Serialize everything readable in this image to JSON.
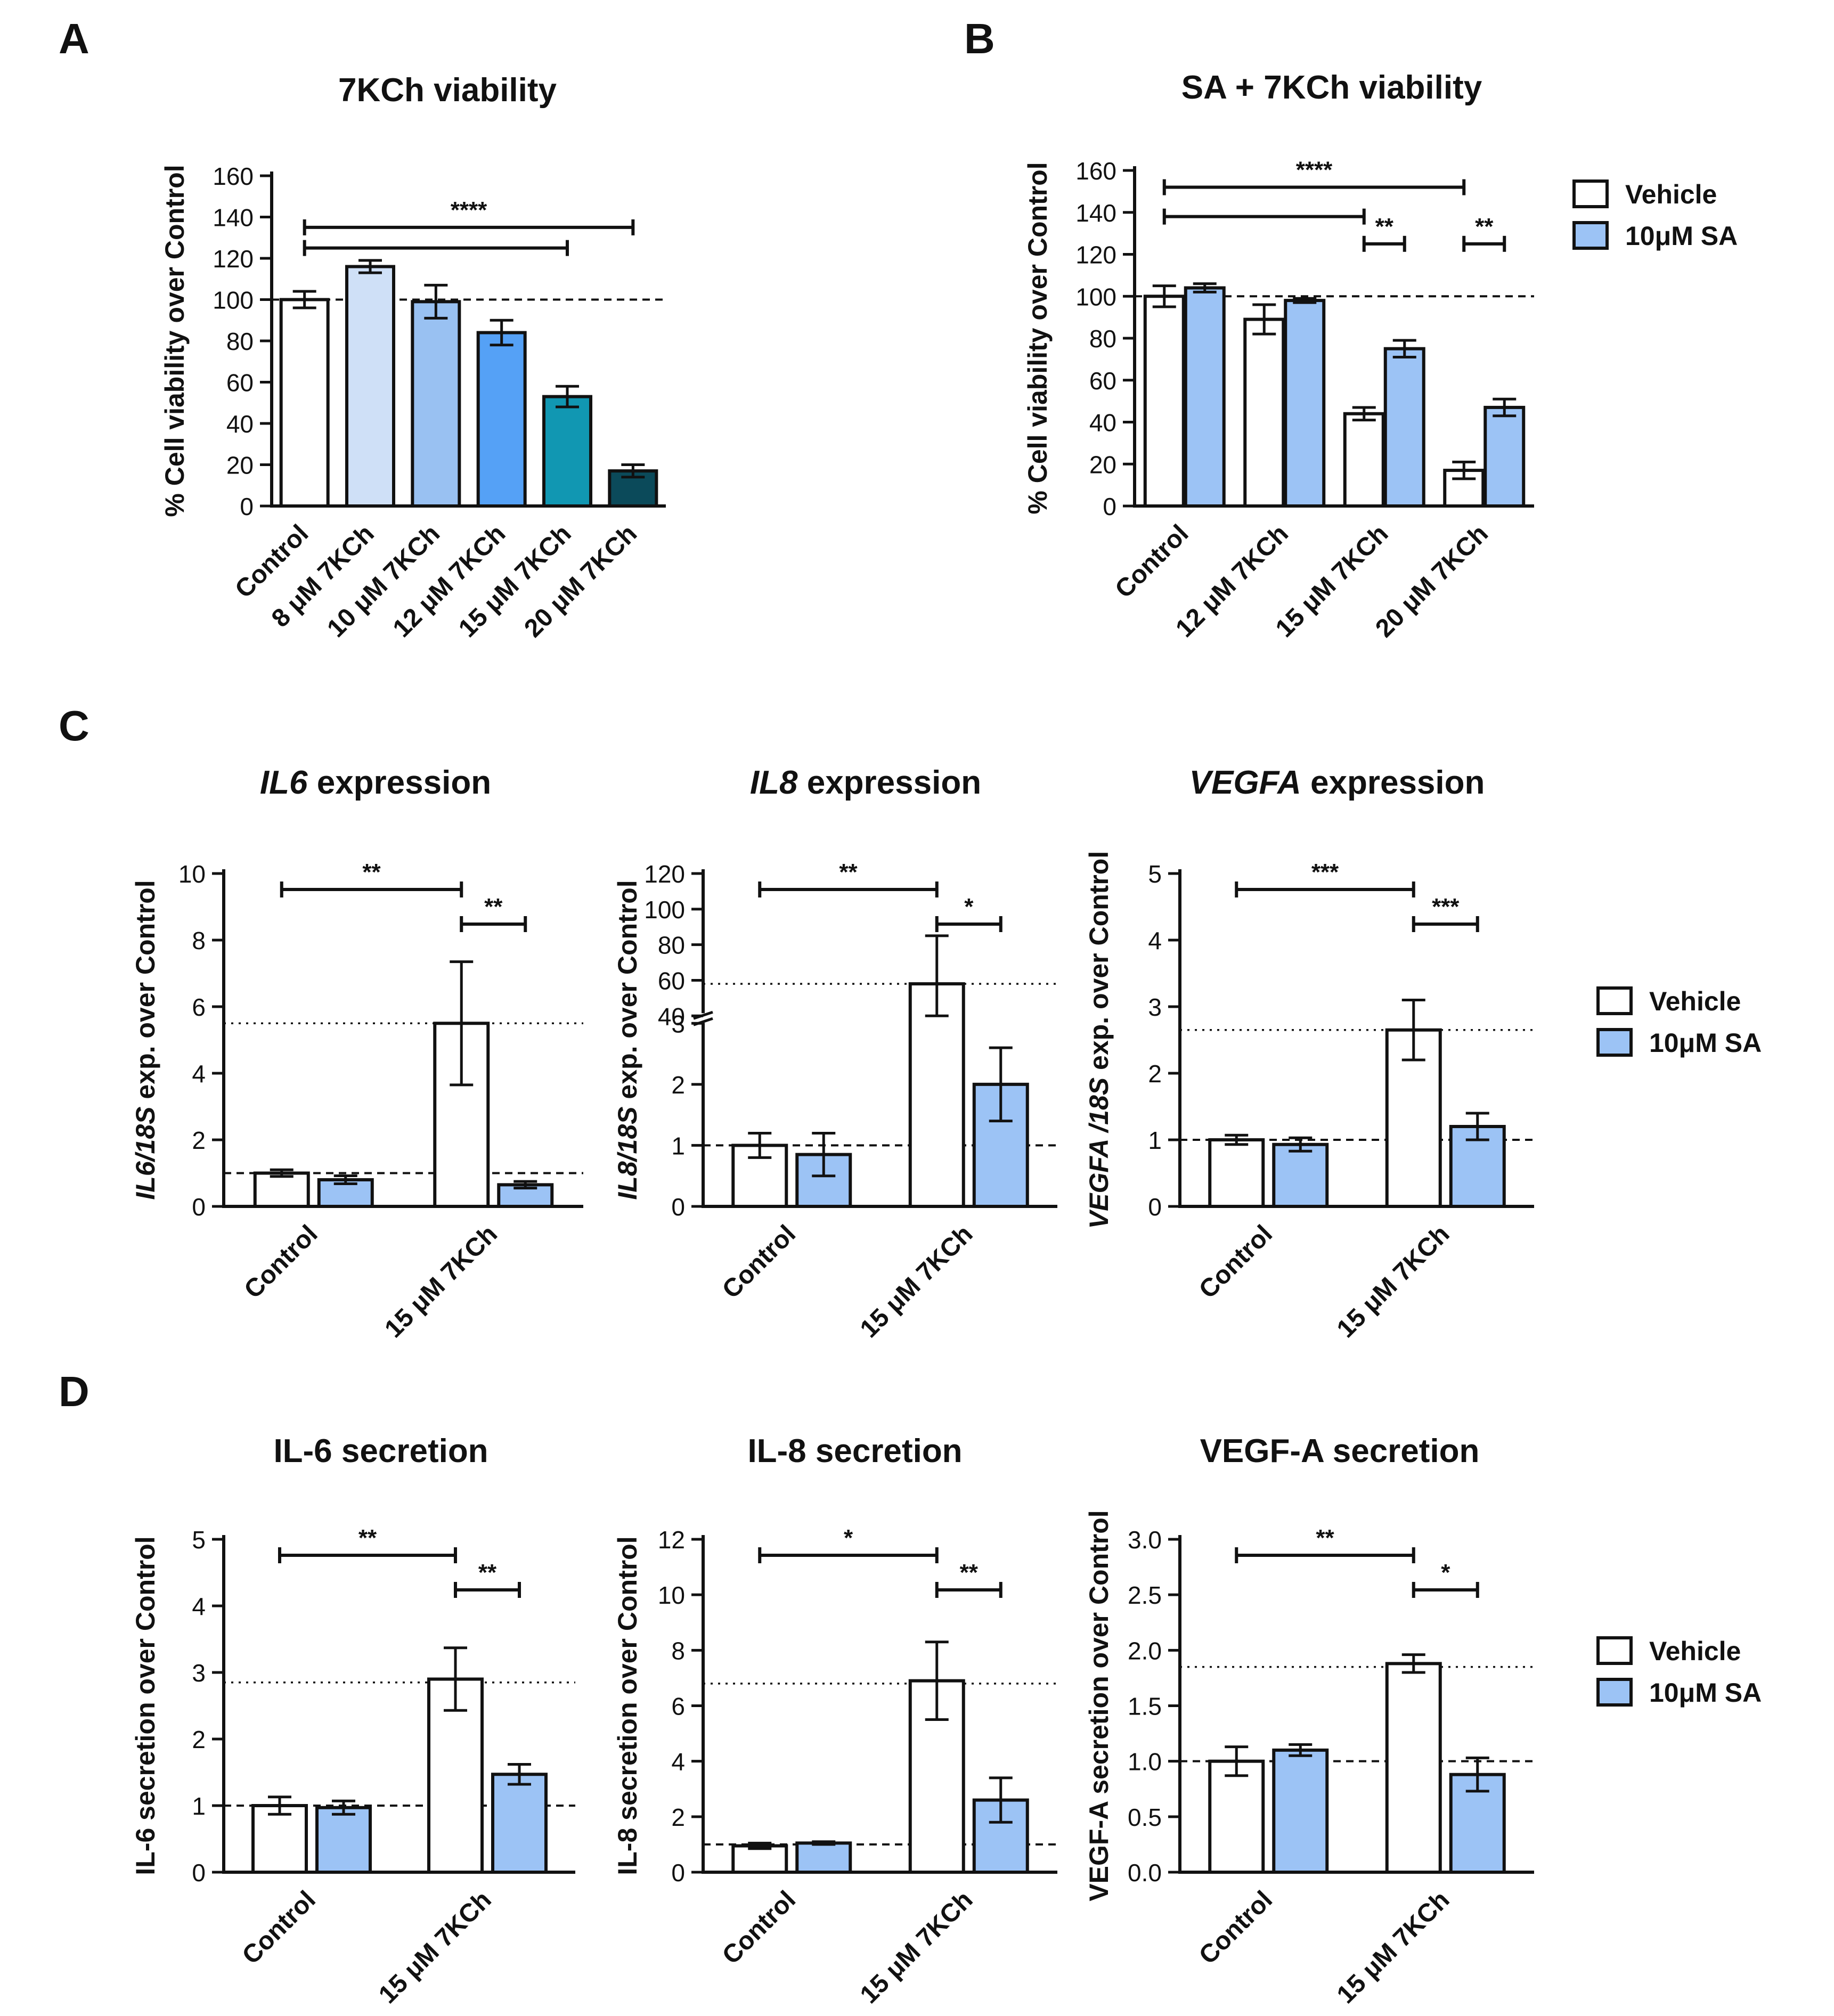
{
  "colors": {
    "axis": "#111111",
    "vehicle": "#ffffff",
    "sa": "#9cc3f5",
    "a_bars": [
      "#ffffff",
      "#cfe0f7",
      "#99c1f2",
      "#55a1f6",
      "#1197b2",
      "#0b4a5a"
    ]
  },
  "legend": {
    "vehicle": "Vehicle",
    "sa": "10μM SA"
  },
  "chart_data": [
    {
      "panel": "A",
      "type": "bar",
      "title": "7KCh viability",
      "ylabel": "% Cell viability over Control",
      "ylim": [
        0,
        160
      ],
      "yticks": [
        0,
        20,
        40,
        60,
        80,
        100,
        120,
        140,
        160
      ],
      "categories": [
        "Control",
        "8 μM 7KCh",
        "10 μM 7KCh",
        "12 μM 7KCh",
        "15 μM 7KCh",
        "20 μM 7KCh"
      ],
      "values": [
        100,
        116,
        99,
        84,
        53,
        17
      ],
      "errors": [
        4,
        3,
        8,
        6,
        5,
        3
      ],
      "ref_line": 100,
      "significance": [
        {
          "from": 0,
          "to": 4,
          "label": ""
        },
        {
          "from": 0,
          "to": 5,
          "label": "****"
        }
      ]
    },
    {
      "panel": "B",
      "type": "bar",
      "title": "SA + 7KCh viability",
      "ylabel": "% Cell viability over Control",
      "ylim": [
        0,
        160
      ],
      "yticks": [
        0,
        20,
        40,
        60,
        80,
        100,
        120,
        140,
        160
      ],
      "categories": [
        "Control",
        "12 μM 7KCh",
        "15 μM 7KCh",
        "20 μM 7KCh"
      ],
      "series": [
        {
          "name": "Vehicle",
          "values": [
            100,
            89,
            44,
            17
          ],
          "errors": [
            5,
            7,
            3,
            4
          ]
        },
        {
          "name": "10μM SA",
          "values": [
            104,
            98,
            75,
            47
          ],
          "errors": [
            2,
            1,
            4,
            4
          ]
        }
      ],
      "ref_line": 100,
      "significance": [
        {
          "from": "0.0",
          "to": "2.0",
          "label": ""
        },
        {
          "from": "0.0",
          "to": "3.0",
          "label": "****"
        },
        {
          "from": "2.0",
          "to": "2.1",
          "label": "**"
        },
        {
          "from": "3.0",
          "to": "3.1",
          "label": "**"
        }
      ]
    },
    {
      "panel": "C",
      "type": "bar",
      "title": "expression",
      "gene": "IL6",
      "ylabel_gene": "IL6/18S",
      "ylabel": "exp. over Control",
      "ylim": [
        0,
        10
      ],
      "yticks": [
        0,
        2,
        4,
        6,
        8,
        10
      ],
      "categories": [
        "Control",
        "15 μM 7KCh"
      ],
      "series": [
        {
          "name": "Vehicle",
          "values": [
            1.0,
            5.5
          ],
          "errors": [
            0.1,
            1.85
          ]
        },
        {
          "name": "10μM SA",
          "values": [
            0.8,
            0.65
          ],
          "errors": [
            0.12,
            0.1
          ]
        }
      ],
      "ref_line": 1,
      "level_line": 5.5,
      "significance": [
        {
          "from": "0.0",
          "to": "1.0",
          "label": "**"
        },
        {
          "from": "1.0",
          "to": "1.1",
          "label": "**"
        }
      ]
    },
    {
      "panel": "C",
      "type": "bar",
      "title": "expression",
      "gene": "IL8",
      "ylabel_gene": "IL8/18S",
      "ylabel": "exp. over Control",
      "ylim": [
        0,
        120
      ],
      "axis_break": [
        3,
        40
      ],
      "yticks": [
        0,
        1,
        2,
        3,
        40,
        60,
        80,
        100,
        120
      ],
      "categories": [
        "Control",
        "15 μM 7KCh"
      ],
      "series": [
        {
          "name": "Vehicle",
          "values": [
            1.0,
            58
          ],
          "errors": [
            0.2,
            27
          ]
        },
        {
          "name": "10μM SA",
          "values": [
            0.85,
            2.0
          ],
          "errors": [
            0.35,
            0.6
          ]
        }
      ],
      "ref_line": 1,
      "level_line": 58,
      "significance": [
        {
          "from": "0.0",
          "to": "1.0",
          "label": "**"
        },
        {
          "from": "1.0",
          "to": "1.1",
          "label": "*"
        }
      ]
    },
    {
      "panel": "C",
      "type": "bar",
      "title": "expression",
      "gene": "VEGFA",
      "ylabel_gene": "VEGFA /18S",
      "ylabel": "exp. over Control",
      "ylim": [
        0,
        5
      ],
      "yticks": [
        0,
        1,
        2,
        3,
        4,
        5
      ],
      "categories": [
        "Control",
        "15 μM 7KCh"
      ],
      "series": [
        {
          "name": "Vehicle",
          "values": [
            1.0,
            2.65
          ],
          "errors": [
            0.07,
            0.45
          ]
        },
        {
          "name": "10μM SA",
          "values": [
            0.93,
            1.2
          ],
          "errors": [
            0.1,
            0.2
          ]
        }
      ],
      "ref_line": 1,
      "level_line": 2.65,
      "significance": [
        {
          "from": "0.0",
          "to": "1.0",
          "label": "***"
        },
        {
          "from": "1.0",
          "to": "1.1",
          "label": "***"
        }
      ]
    },
    {
      "panel": "D",
      "type": "bar",
      "title": "IL-6 secretion",
      "ylabel": "IL-6 secretion over Control",
      "ylim": [
        0,
        5
      ],
      "yticks": [
        0,
        1,
        2,
        3,
        4,
        5
      ],
      "categories": [
        "Control",
        "15 μM 7KCh"
      ],
      "series": [
        {
          "name": "Vehicle",
          "values": [
            1.0,
            2.9
          ],
          "errors": [
            0.13,
            0.47
          ]
        },
        {
          "name": "10μM SA",
          "values": [
            0.97,
            1.47
          ],
          "errors": [
            0.1,
            0.15
          ]
        }
      ],
      "ref_line": 1,
      "level_line": 2.85,
      "significance": [
        {
          "from": "0.0",
          "to": "1.0",
          "label": "**"
        },
        {
          "from": "1.0",
          "to": "1.1",
          "label": "**"
        }
      ]
    },
    {
      "panel": "D",
      "type": "bar",
      "title": "IL-8 secretion",
      "ylabel": "IL-8 secretion over Control",
      "ylim": [
        0,
        12
      ],
      "yticks": [
        0,
        2,
        4,
        6,
        8,
        10,
        12
      ],
      "categories": [
        "Control",
        "15 μM 7KCh"
      ],
      "series": [
        {
          "name": "Vehicle",
          "values": [
            0.95,
            6.9
          ],
          "errors": [
            0.1,
            1.4
          ]
        },
        {
          "name": "10μM SA",
          "values": [
            1.05,
            2.6
          ],
          "errors": [
            0.05,
            0.8
          ]
        }
      ],
      "ref_line": 1,
      "level_line": 6.8,
      "significance": [
        {
          "from": "0.0",
          "to": "1.0",
          "label": "*"
        },
        {
          "from": "1.0",
          "to": "1.1",
          "label": "**"
        }
      ]
    },
    {
      "panel": "D",
      "type": "bar",
      "title": "VEGF-A secretion",
      "ylabel": "VEGF-A secretion over Control",
      "ylim": [
        0,
        3
      ],
      "yticks": [
        "0.0",
        "0.5",
        "1.0",
        "1.5",
        "2.0",
        "2.5",
        "3.0"
      ],
      "categories": [
        "Control",
        "15 μM 7KCh"
      ],
      "series": [
        {
          "name": "Vehicle",
          "values": [
            1.0,
            1.88
          ],
          "errors": [
            0.13,
            0.08
          ]
        },
        {
          "name": "10μM SA",
          "values": [
            1.1,
            0.88
          ],
          "errors": [
            0.05,
            0.15
          ]
        }
      ],
      "ref_line": 1,
      "level_line": 1.85,
      "significance": [
        {
          "from": "0.0",
          "to": "1.0",
          "label": "**"
        },
        {
          "from": "1.0",
          "to": "1.1",
          "label": "*"
        }
      ]
    }
  ]
}
